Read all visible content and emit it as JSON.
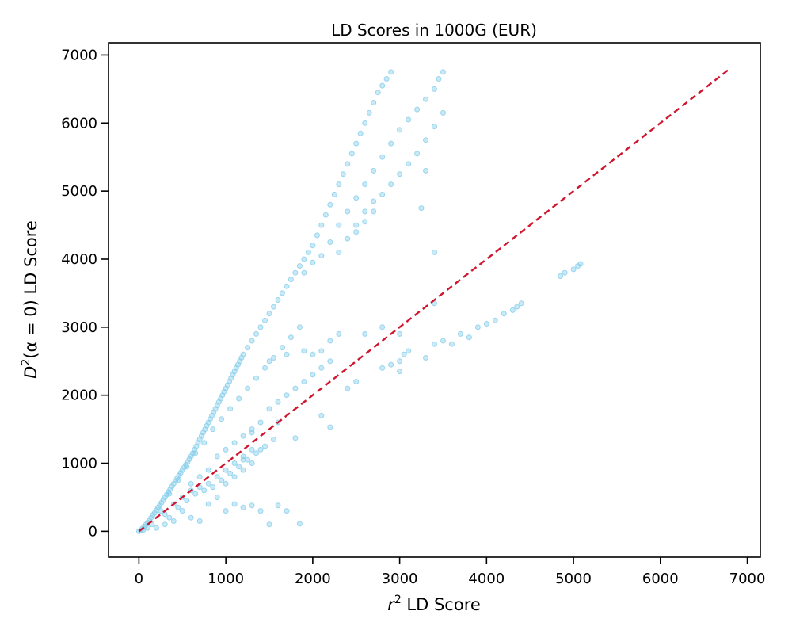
{
  "chart_data": {
    "type": "scatter",
    "title": "LD Scores in 1000G (EUR)",
    "xlabel": {
      "base": "r",
      "sup": "2",
      "rest": " LD Score"
    },
    "ylabel": {
      "base": "D",
      "sup": "2",
      "rest": "(α = 0) LD Score"
    },
    "xlim": [
      -350,
      7150
    ],
    "ylim": [
      -380,
      7180
    ],
    "xticks": [
      0,
      1000,
      2000,
      3000,
      4000,
      5000,
      6000,
      7000
    ],
    "yticks": [
      0,
      1000,
      2000,
      3000,
      4000,
      5000,
      6000,
      7000
    ],
    "grid": false,
    "point_color": "#87CEEB",
    "reference_line": {
      "x": [
        0,
        6800
      ],
      "y": [
        0,
        6800
      ],
      "color": "#D0162F",
      "style": "dashed"
    },
    "series": [
      {
        "points": [
          [
            0,
            0
          ],
          [
            20,
            15
          ],
          [
            40,
            40
          ],
          [
            60,
            70
          ],
          [
            80,
            100
          ],
          [
            100,
            130
          ],
          [
            120,
            160
          ],
          [
            140,
            200
          ],
          [
            160,
            240
          ],
          [
            180,
            270
          ],
          [
            200,
            310
          ],
          [
            220,
            350
          ],
          [
            240,
            380
          ],
          [
            260,
            420
          ],
          [
            280,
            460
          ],
          [
            300,
            500
          ],
          [
            320,
            540
          ],
          [
            340,
            580
          ],
          [
            360,
            620
          ],
          [
            380,
            660
          ],
          [
            400,
            700
          ],
          [
            420,
            740
          ],
          [
            440,
            780
          ],
          [
            460,
            820
          ],
          [
            480,
            860
          ],
          [
            500,
            900
          ],
          [
            520,
            940
          ],
          [
            540,
            980
          ],
          [
            560,
            1020
          ],
          [
            580,
            1060
          ],
          [
            600,
            1100
          ],
          [
            620,
            1150
          ],
          [
            640,
            1200
          ],
          [
            660,
            1250
          ],
          [
            680,
            1300
          ],
          [
            700,
            1350
          ],
          [
            720,
            1400
          ],
          [
            740,
            1450
          ],
          [
            760,
            1500
          ],
          [
            780,
            1550
          ],
          [
            800,
            1600
          ],
          [
            820,
            1650
          ],
          [
            840,
            1700
          ],
          [
            860,
            1750
          ],
          [
            880,
            1800
          ],
          [
            900,
            1850
          ],
          [
            920,
            1900
          ],
          [
            940,
            1950
          ],
          [
            960,
            2000
          ],
          [
            980,
            2050
          ],
          [
            1000,
            2100
          ],
          [
            1020,
            2150
          ],
          [
            1040,
            2200
          ],
          [
            1060,
            2250
          ],
          [
            1080,
            2300
          ],
          [
            1100,
            2350
          ],
          [
            1120,
            2400
          ],
          [
            1140,
            2450
          ],
          [
            1160,
            2500
          ],
          [
            1180,
            2550
          ],
          [
            1200,
            2600
          ],
          [
            1250,
            2700
          ],
          [
            1300,
            2800
          ],
          [
            1350,
            2900
          ],
          [
            1400,
            3000
          ],
          [
            1450,
            3100
          ],
          [
            1500,
            3200
          ],
          [
            1550,
            3300
          ],
          [
            1600,
            3400
          ],
          [
            1650,
            3500
          ],
          [
            1700,
            3600
          ],
          [
            1750,
            3700
          ],
          [
            1800,
            3800
          ],
          [
            1850,
            3900
          ],
          [
            1900,
            4000
          ],
          [
            1950,
            4100
          ],
          [
            2000,
            4200
          ],
          [
            2050,
            4350
          ],
          [
            2100,
            4500
          ],
          [
            2150,
            4650
          ],
          [
            2200,
            4800
          ],
          [
            2250,
            4950
          ],
          [
            2300,
            5100
          ],
          [
            2350,
            5250
          ],
          [
            2400,
            5400
          ],
          [
            2450,
            5550
          ],
          [
            2500,
            5700
          ],
          [
            2550,
            5850
          ],
          [
            2600,
            6000
          ],
          [
            2650,
            6150
          ],
          [
            2700,
            6300
          ],
          [
            2750,
            6450
          ],
          [
            2800,
            6550
          ],
          [
            2850,
            6650
          ],
          [
            2900,
            6750
          ],
          [
            1900,
            3800
          ],
          [
            2000,
            3950
          ],
          [
            2100,
            4050
          ],
          [
            2200,
            4250
          ],
          [
            2300,
            4500
          ],
          [
            2400,
            4700
          ],
          [
            2500,
            4900
          ],
          [
            2600,
            5100
          ],
          [
            2700,
            5300
          ],
          [
            2800,
            5500
          ],
          [
            2900,
            5700
          ],
          [
            3000,
            5900
          ],
          [
            3100,
            6050
          ],
          [
            3200,
            6200
          ],
          [
            3300,
            6350
          ],
          [
            3400,
            6500
          ],
          [
            3450,
            6650
          ],
          [
            3500,
            6750
          ],
          [
            2500,
            4500
          ],
          [
            2600,
            4700
          ],
          [
            2700,
            4850
          ],
          [
            2800,
            4950
          ],
          [
            2900,
            5100
          ],
          [
            3000,
            5250
          ],
          [
            3100,
            5400
          ],
          [
            3200,
            5550
          ],
          [
            3300,
            5750
          ],
          [
            3400,
            5950
          ],
          [
            3500,
            6150
          ],
          [
            2300,
            4100
          ],
          [
            2400,
            4300
          ],
          [
            2500,
            4400
          ],
          [
            2600,
            4550
          ],
          [
            2700,
            4700
          ],
          [
            1500,
            2500
          ],
          [
            1700,
            2600
          ],
          [
            1900,
            2650
          ],
          [
            2000,
            2600
          ],
          [
            2100,
            2650
          ],
          [
            2200,
            2800
          ],
          [
            2300,
            2900
          ],
          [
            2800,
            2400
          ],
          [
            2900,
            2450
          ],
          [
            3000,
            2500
          ],
          [
            3050,
            2600
          ],
          [
            3300,
            2550
          ],
          [
            3400,
            2750
          ],
          [
            3500,
            2800
          ],
          [
            3600,
            2750
          ],
          [
            3700,
            2900
          ],
          [
            3800,
            2850
          ],
          [
            3900,
            3000
          ],
          [
            4000,
            3050
          ],
          [
            4100,
            3100
          ],
          [
            4200,
            3200
          ],
          [
            4300,
            3250
          ],
          [
            4350,
            3300
          ],
          [
            4400,
            3350
          ],
          [
            4850,
            3750
          ],
          [
            4900,
            3800
          ],
          [
            5000,
            3850
          ],
          [
            5050,
            3900
          ],
          [
            5080,
            3930
          ],
          [
            1000,
            300
          ],
          [
            1100,
            400
          ],
          [
            1200,
            350
          ],
          [
            1300,
            380
          ],
          [
            1400,
            300
          ],
          [
            1500,
            100
          ],
          [
            1600,
            380
          ],
          [
            1700,
            300
          ],
          [
            1850,
            110
          ],
          [
            2200,
            1530
          ],
          [
            2400,
            2100
          ],
          [
            2500,
            2200
          ],
          [
            3000,
            2350
          ],
          [
            3100,
            2650
          ],
          [
            3400,
            4100
          ],
          [
            3300,
            5300
          ],
          [
            3250,
            4750
          ],
          [
            3400,
            3350
          ],
          [
            3000,
            2900
          ],
          [
            2800,
            3000
          ],
          [
            2600,
            2900
          ],
          [
            2100,
            1700
          ],
          [
            1800,
            1370
          ],
          [
            1600,
            1600
          ],
          [
            1300,
            1450
          ],
          [
            1200,
            1050
          ],
          [
            500,
            300
          ],
          [
            600,
            200
          ],
          [
            700,
            150
          ],
          [
            800,
            400
          ],
          [
            900,
            500
          ],
          [
            1000,
            700
          ],
          [
            1100,
            800
          ],
          [
            1200,
            900
          ],
          [
            1300,
            1000
          ],
          [
            1400,
            1200
          ],
          [
            300,
            100
          ],
          [
            400,
            150
          ],
          [
            200,
            50
          ],
          [
            350,
            550
          ],
          [
            450,
            750
          ],
          [
            550,
            950
          ],
          [
            650,
            1150
          ],
          [
            750,
            1300
          ],
          [
            850,
            1500
          ],
          [
            950,
            1650
          ],
          [
            1050,
            1800
          ],
          [
            1150,
            1950
          ],
          [
            1250,
            2100
          ],
          [
            1350,
            2250
          ],
          [
            1450,
            2400
          ],
          [
            1550,
            2550
          ],
          [
            1650,
            2700
          ],
          [
            1750,
            2850
          ],
          [
            1850,
            3000
          ],
          [
            600,
            700
          ],
          [
            700,
            800
          ],
          [
            800,
            900
          ],
          [
            900,
            1100
          ],
          [
            1000,
            1200
          ],
          [
            1100,
            1300
          ],
          [
            1200,
            1400
          ],
          [
            1300,
            1500
          ],
          [
            1400,
            1600
          ],
          [
            1500,
            1800
          ],
          [
            1600,
            1900
          ],
          [
            1700,
            2000
          ],
          [
            1800,
            2100
          ],
          [
            1900,
            2200
          ],
          [
            2000,
            2300
          ],
          [
            2100,
            2400
          ],
          [
            2200,
            2500
          ],
          [
            400,
            400
          ],
          [
            500,
            500
          ],
          [
            600,
            600
          ],
          [
            700,
            650
          ],
          [
            800,
            700
          ],
          [
            900,
            800
          ],
          [
            1000,
            900
          ],
          [
            1100,
            1000
          ],
          [
            1200,
            1100
          ],
          [
            1300,
            1200
          ],
          [
            300,
            250
          ],
          [
            250,
            300
          ],
          [
            150,
            100
          ],
          [
            100,
            50
          ],
          [
            50,
            20
          ],
          [
            350,
            200
          ],
          [
            450,
            350
          ],
          [
            550,
            450
          ],
          [
            650,
            550
          ],
          [
            750,
            600
          ],
          [
            850,
            650
          ],
          [
            950,
            750
          ],
          [
            1050,
            850
          ],
          [
            1150,
            950
          ],
          [
            1250,
            1050
          ],
          [
            1350,
            1150
          ],
          [
            1450,
            1250
          ],
          [
            1550,
            1350
          ]
        ]
      }
    ]
  }
}
